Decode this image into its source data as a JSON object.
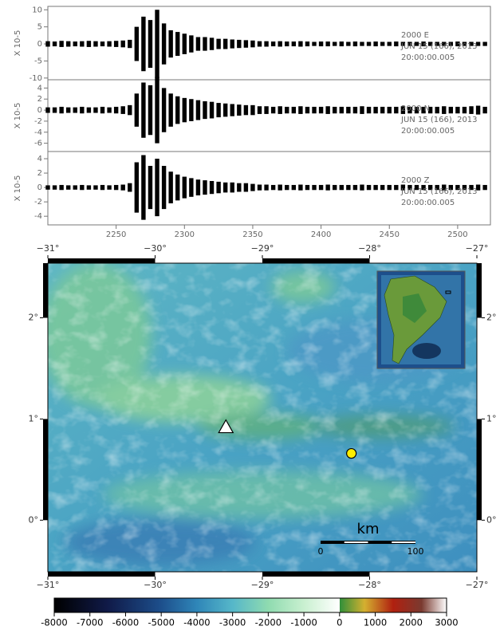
{
  "chart_data": [
    {
      "type": "line",
      "ylabel": "X 10-5",
      "annotations": [
        "2000  E",
        "JUN 15 (166), 2013",
        "20:00:00.005"
      ],
      "color": "#000000",
      "xlim": [
        2200,
        2524
      ],
      "ylim": [
        -10.5,
        11
      ],
      "yticks": [
        -10,
        -5,
        0,
        5,
        10
      ],
      "x": [
        2200,
        2205,
        2210,
        2215,
        2220,
        2225,
        2230,
        2235,
        2240,
        2245,
        2250,
        2255,
        2260,
        2265,
        2270,
        2275,
        2280,
        2285,
        2290,
        2295,
        2300,
        2305,
        2310,
        2315,
        2320,
        2325,
        2330,
        2335,
        2340,
        2345,
        2350,
        2355,
        2360,
        2365,
        2370,
        2375,
        2380,
        2385,
        2390,
        2395,
        2400,
        2405,
        2410,
        2415,
        2420,
        2425,
        2430,
        2435,
        2440,
        2445,
        2450,
        2455,
        2460,
        2465,
        2470,
        2475,
        2480,
        2485,
        2490,
        2495,
        2500,
        2505,
        2510,
        2515,
        2520
      ],
      "values": [
        0.8,
        0.7,
        0.9,
        0.8,
        0.7,
        0.8,
        0.9,
        0.8,
        0.7,
        0.8,
        0.9,
        1.0,
        1.2,
        5,
        8,
        7,
        10,
        6,
        4,
        3.5,
        3,
        2.5,
        2,
        2,
        1.8,
        1.5,
        1.5,
        1.3,
        1.2,
        1.1,
        1,
        0.8,
        0.8,
        0.7,
        0.8,
        0.7,
        0.7,
        0.8,
        0.7,
        0.6,
        0.7,
        0.7,
        0.6,
        0.7,
        0.6,
        0.7,
        0.6,
        0.6,
        0.7,
        0.6,
        0.6,
        0.7,
        0.6,
        0.6,
        0.6,
        0.7,
        0.6,
        0.6,
        0.6,
        0.6,
        0.7,
        0.6,
        0.6,
        0.6,
        0.6
      ]
    },
    {
      "type": "line",
      "ylabel": "X 10-5",
      "annotations": [
        "2000  N",
        "JUN 15 (166), 2013",
        "20:00:00.005"
      ],
      "color": "#000000",
      "xlim": [
        2200,
        2524
      ],
      "ylim": [
        -7.5,
        5.5
      ],
      "yticks": [
        -6,
        -4,
        -2,
        0,
        2,
        4
      ],
      "x": [
        2200,
        2205,
        2210,
        2215,
        2220,
        2225,
        2230,
        2235,
        2240,
        2245,
        2250,
        2255,
        2260,
        2265,
        2270,
        2275,
        2280,
        2285,
        2290,
        2295,
        2300,
        2305,
        2310,
        2315,
        2320,
        2325,
        2330,
        2335,
        2340,
        2345,
        2350,
        2355,
        2360,
        2365,
        2370,
        2375,
        2380,
        2385,
        2390,
        2395,
        2400,
        2405,
        2410,
        2415,
        2420,
        2425,
        2430,
        2435,
        2440,
        2445,
        2450,
        2455,
        2460,
        2465,
        2470,
        2475,
        2480,
        2485,
        2490,
        2495,
        2500,
        2505,
        2510,
        2515,
        2520
      ],
      "values": [
        0.5,
        0.5,
        0.6,
        0.5,
        0.5,
        0.6,
        0.5,
        0.5,
        0.6,
        0.5,
        0.6,
        0.7,
        0.9,
        3,
        5,
        4.5,
        6,
        4,
        3,
        2.5,
        2.2,
        2,
        1.8,
        1.6,
        1.5,
        1.3,
        1.2,
        1.1,
        1,
        0.9,
        0.9,
        0.7,
        0.7,
        0.6,
        0.7,
        0.6,
        0.6,
        0.7,
        0.6,
        0.6,
        0.6,
        0.7,
        0.6,
        0.6,
        0.6,
        0.6,
        0.7,
        0.6,
        0.6,
        0.6,
        0.6,
        0.6,
        0.7,
        0.6,
        0.6,
        0.6,
        0.6,
        0.6,
        0.7,
        0.6,
        0.6,
        0.6,
        0.7,
        0.8,
        0.6
      ]
    },
    {
      "type": "line",
      "ylabel": "X 10-5",
      "annotations": [
        "2000  Z",
        "JUN 15 (166), 2013",
        "20:00:00.005"
      ],
      "color": "#000000",
      "xlim": [
        2200,
        2524
      ],
      "ylim": [
        -5.2,
        5
      ],
      "yticks": [
        -4,
        -2,
        0,
        2,
        4
      ],
      "xticks": [
        2250,
        2300,
        2350,
        2400,
        2450,
        2500
      ],
      "x": [
        2200,
        2205,
        2210,
        2215,
        2220,
        2225,
        2230,
        2235,
        2240,
        2245,
        2250,
        2255,
        2260,
        2265,
        2270,
        2275,
        2280,
        2285,
        2290,
        2295,
        2300,
        2305,
        2310,
        2315,
        2320,
        2325,
        2330,
        2335,
        2340,
        2345,
        2350,
        2355,
        2360,
        2365,
        2370,
        2375,
        2380,
        2385,
        2390,
        2395,
        2400,
        2405,
        2410,
        2415,
        2420,
        2425,
        2430,
        2435,
        2440,
        2445,
        2450,
        2455,
        2460,
        2465,
        2470,
        2475,
        2480,
        2485,
        2490,
        2495,
        2500,
        2505,
        2510,
        2515,
        2520
      ],
      "values": [
        0.3,
        0.3,
        0.35,
        0.3,
        0.3,
        0.35,
        0.3,
        0.3,
        0.35,
        0.3,
        0.35,
        0.4,
        0.6,
        3.5,
        4.5,
        3,
        4,
        3,
        2.2,
        1.8,
        1.5,
        1.3,
        1.1,
        1,
        0.9,
        0.8,
        0.7,
        0.7,
        0.6,
        0.6,
        0.5,
        0.4,
        0.4,
        0.35,
        0.4,
        0.35,
        0.35,
        0.4,
        0.35,
        0.35,
        0.35,
        0.4,
        0.35,
        0.35,
        0.35,
        0.35,
        0.4,
        0.35,
        0.35,
        0.35,
        0.35,
        0.35,
        0.4,
        0.35,
        0.35,
        0.35,
        0.35,
        0.35,
        0.4,
        0.35,
        0.35,
        0.35,
        0.35,
        0.4,
        0.35
      ]
    },
    {
      "type": "map",
      "xlim": [
        -31,
        -27
      ],
      "ylim": [
        -0.51,
        2.54
      ],
      "xticks": [
        {
          "value": -31,
          "label": "−31°"
        },
        {
          "value": -30,
          "label": "−30°"
        },
        {
          "value": -29,
          "label": "−29°"
        },
        {
          "value": -28,
          "label": "−28°"
        },
        {
          "value": -27,
          "label": "−27°"
        }
      ],
      "yticks": [
        {
          "value": 0,
          "label": "0°"
        },
        {
          "value": 1,
          "label": "1°"
        },
        {
          "value": 2,
          "label": "2°"
        }
      ],
      "points": [
        {
          "lon": -29.34,
          "lat": 0.92,
          "marker": "triangle",
          "color": "#ffffff"
        },
        {
          "lon": -28.17,
          "lat": 0.66,
          "marker": "circle",
          "color": "#ffee00"
        }
      ],
      "scale_bar": {
        "label": "km",
        "ticks": [
          0,
          100
        ]
      }
    },
    {
      "type": "colorbar",
      "xlim": [
        -8000,
        3000
      ],
      "xticks": [
        -8000,
        -7000,
        -6000,
        -5000,
        -4000,
        -3000,
        -2000,
        -1000,
        0,
        1000,
        2000,
        3000
      ],
      "colors": [
        {
          "value": -8000,
          "color": "#000000"
        },
        {
          "value": -6500,
          "color": "#101a48"
        },
        {
          "value": -5000,
          "color": "#1d4f8c"
        },
        {
          "value": -4000,
          "color": "#2f86b8"
        },
        {
          "value": -3000,
          "color": "#56b7c9"
        },
        {
          "value": -2000,
          "color": "#8fdbb0"
        },
        {
          "value": -1000,
          "color": "#c9f0d0"
        },
        {
          "value": -1,
          "color": "#ffffff"
        },
        {
          "value": 0,
          "color": "#2f8f3a"
        },
        {
          "value": 700,
          "color": "#d4b030"
        },
        {
          "value": 1500,
          "color": "#b02010"
        },
        {
          "value": 2300,
          "color": "#7a3a30"
        },
        {
          "value": 3000,
          "color": "#ffffff"
        }
      ]
    }
  ]
}
